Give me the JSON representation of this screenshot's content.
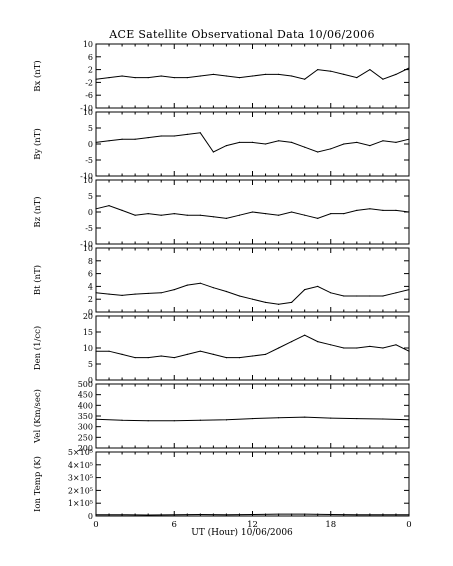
{
  "chart_data": {
    "type": "line",
    "title": "ACE Satellite Observational Data   10/06/2006",
    "xlabel": "UT (Hour)   10/06/2006",
    "x_ticks": [
      "0",
      "6",
      "12",
      "18",
      "0"
    ],
    "xlim": [
      0,
      24
    ],
    "grid": false,
    "panels": [
      {
        "ylabel": "Bx (nT)",
        "ylim": [
          -10,
          10
        ],
        "yticks": [
          "-10",
          "-6",
          "-2",
          "2",
          "6",
          "10"
        ],
        "ytick_values": [
          -10,
          -6,
          -2,
          2,
          6,
          10
        ],
        "series": [
          {
            "x": [
              0,
              1,
              2,
              3,
              4,
              5,
              6,
              7,
              8,
              9,
              10,
              11,
              12,
              13,
              14,
              15,
              16,
              17,
              18,
              19,
              20,
              21,
              22,
              23,
              24
            ],
            "y": [
              -1,
              -0.5,
              0,
              -0.5,
              -0.5,
              0,
              -0.5,
              -0.5,
              0,
              0.5,
              0,
              -0.5,
              0,
              0.5,
              0.5,
              0,
              -1,
              2,
              1.5,
              0.5,
              -0.5,
              2,
              -1,
              0.5,
              2.5
            ]
          }
        ]
      },
      {
        "ylabel": "By (nT)",
        "ylim": [
          -10,
          10
        ],
        "yticks": [
          "-10",
          "-5",
          "0",
          "5",
          "10"
        ],
        "ytick_values": [
          -10,
          -5,
          0,
          5,
          10
        ],
        "series": [
          {
            "x": [
              0,
              1,
              2,
              3,
              4,
              5,
              6,
              7,
              8,
              9,
              10,
              11,
              12,
              13,
              14,
              15,
              16,
              17,
              18,
              19,
              20,
              21,
              22,
              23,
              24
            ],
            "y": [
              0.5,
              1,
              1.5,
              1.5,
              2,
              2.5,
              2.5,
              3,
              3.5,
              -2.5,
              -0.5,
              0.5,
              0.5,
              0,
              1,
              0.5,
              -1,
              -2.5,
              -1.5,
              0,
              0.5,
              -0.5,
              1,
              0.5,
              1.5
            ]
          }
        ]
      },
      {
        "ylabel": "Bz (nT)",
        "ylim": [
          -10,
          10
        ],
        "yticks": [
          "-10",
          "-5",
          "0",
          "5",
          "10"
        ],
        "ytick_values": [
          -10,
          -5,
          0,
          5,
          10
        ],
        "series": [
          {
            "x": [
              0,
              1,
              2,
              3,
              4,
              5,
              6,
              7,
              8,
              9,
              10,
              11,
              12,
              13,
              14,
              15,
              16,
              17,
              18,
              19,
              20,
              21,
              22,
              23,
              24
            ],
            "y": [
              1,
              2,
              0.5,
              -1,
              -0.5,
              -1,
              -0.5,
              -1,
              -1,
              -1.5,
              -2,
              -1,
              0,
              -0.5,
              -1,
              0,
              -1,
              -2,
              -0.5,
              -0.5,
              0.5,
              1,
              0.5,
              0.5,
              0
            ]
          }
        ]
      },
      {
        "ylabel": "Bt (nT)",
        "ylim": [
          0,
          10
        ],
        "yticks": [
          "0",
          "2",
          "4",
          "6",
          "8",
          "10"
        ],
        "ytick_values": [
          0,
          2,
          4,
          6,
          8,
          10
        ],
        "series": [
          {
            "x": [
              0,
              1,
              2,
              3,
              4,
              5,
              6,
              7,
              8,
              9,
              10,
              11,
              12,
              13,
              14,
              15,
              16,
              17,
              18,
              19,
              20,
              21,
              22,
              23,
              24
            ],
            "y": [
              3,
              2.8,
              2.6,
              2.8,
              2.9,
              3,
              3.5,
              4.2,
              4.5,
              3.8,
              3.2,
              2.5,
              2,
              1.5,
              1.2,
              1.5,
              3.5,
              4,
              3,
              2.5,
              2.5,
              2.5,
              2.5,
              3,
              3.5
            ]
          }
        ]
      },
      {
        "ylabel": "Den (1/cc)",
        "ylim": [
          0,
          20
        ],
        "yticks": [
          "0",
          "5",
          "10",
          "15",
          "20"
        ],
        "ytick_values": [
          0,
          5,
          10,
          15,
          20
        ],
        "series": [
          {
            "x": [
              0,
              1,
              2,
              3,
              4,
              5,
              6,
              7,
              8,
              9,
              10,
              11,
              12,
              13,
              14,
              15,
              16,
              17,
              18,
              19,
              20,
              21,
              22,
              23,
              24
            ],
            "y": [
              9,
              9,
              8,
              7,
              7,
              7.5,
              7,
              8,
              9,
              8,
              7,
              7,
              7.5,
              8,
              10,
              12,
              14,
              12,
              11,
              10,
              10,
              10.5,
              10,
              11,
              9
            ]
          }
        ]
      },
      {
        "ylabel": "Vel (Km/sec)",
        "ylim": [
          200,
          500
        ],
        "yticks": [
          "200",
          "250",
          "300",
          "350",
          "400",
          "450",
          "500"
        ],
        "ytick_values": [
          200,
          250,
          300,
          350,
          400,
          450,
          500
        ],
        "series": [
          {
            "x": [
              0,
              2,
              4,
              6,
              8,
              10,
              12,
              14,
              16,
              18,
              20,
              22,
              24
            ],
            "y": [
              335,
              330,
              328,
              328,
              330,
              332,
              338,
              342,
              345,
              340,
              338,
              336,
              332
            ]
          }
        ]
      },
      {
        "ylabel": "Ion Temp (K)",
        "ylim": [
          0,
          5
        ],
        "ylim_note": "×10^5 K",
        "yticks": [
          "0",
          "1×10⁵",
          "2×10⁵",
          "3×10⁵",
          "4×10⁵",
          "5×10⁵"
        ],
        "ytick_values": [
          0,
          1,
          2,
          3,
          4,
          5
        ],
        "series": [
          {
            "x": [
              0,
              2,
              4,
              6,
              8,
              10,
              12,
              14,
              16,
              18,
              20,
              22,
              24
            ],
            "y": [
              0.1,
              0.1,
              0.08,
              0.1,
              0.12,
              0.1,
              0.12,
              0.15,
              0.15,
              0.12,
              0.1,
              0.1,
              0.1
            ]
          }
        ]
      }
    ]
  }
}
